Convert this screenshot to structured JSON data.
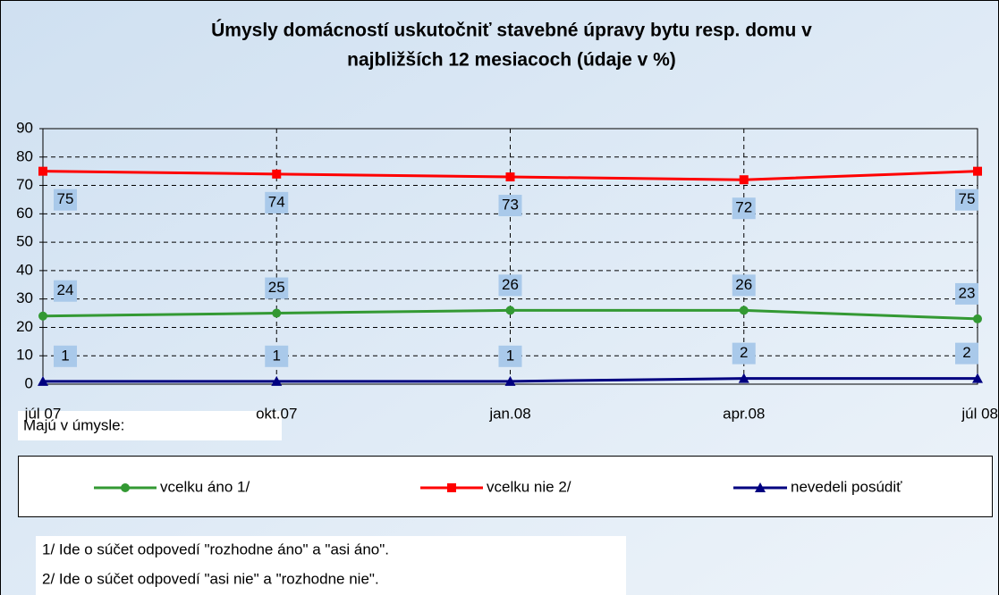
{
  "chart_data": {
    "type": "line",
    "title": [
      "Úmysly domácností  uskutočniť stavebné úpravy bytu resp. domu v",
      "najbližších 12 mesiacoch (údaje v %)"
    ],
    "categories": [
      "júl 07",
      "okt.07",
      "jan.08",
      "apr.08",
      "júl 08"
    ],
    "series": [
      {
        "name": "vcelku áno 1/",
        "color": "#339933",
        "marker": "circle",
        "values": [
          24,
          25,
          26,
          26,
          23
        ]
      },
      {
        "name": "vcelku nie 2/",
        "color": "#ff0000",
        "marker": "square",
        "values": [
          75,
          74,
          73,
          72,
          75
        ]
      },
      {
        "name": "nevedeli posúdiť",
        "color": "#000080",
        "marker": "triangle",
        "values": [
          1,
          1,
          1,
          2,
          2
        ]
      }
    ],
    "ylim": [
      0,
      90
    ],
    "yticks": [
      0,
      10,
      20,
      30,
      40,
      50,
      60,
      70,
      80,
      90
    ],
    "grid": true,
    "legend_title": "Majú v úmysle:",
    "notes": [
      "1/ Ide o súčet odpovedí \"rozhodne áno\" a \"asi áno\".",
      "2/ Ide o súčet odpovedí \"asi nie\" a \"rozhodne nie\"."
    ]
  }
}
